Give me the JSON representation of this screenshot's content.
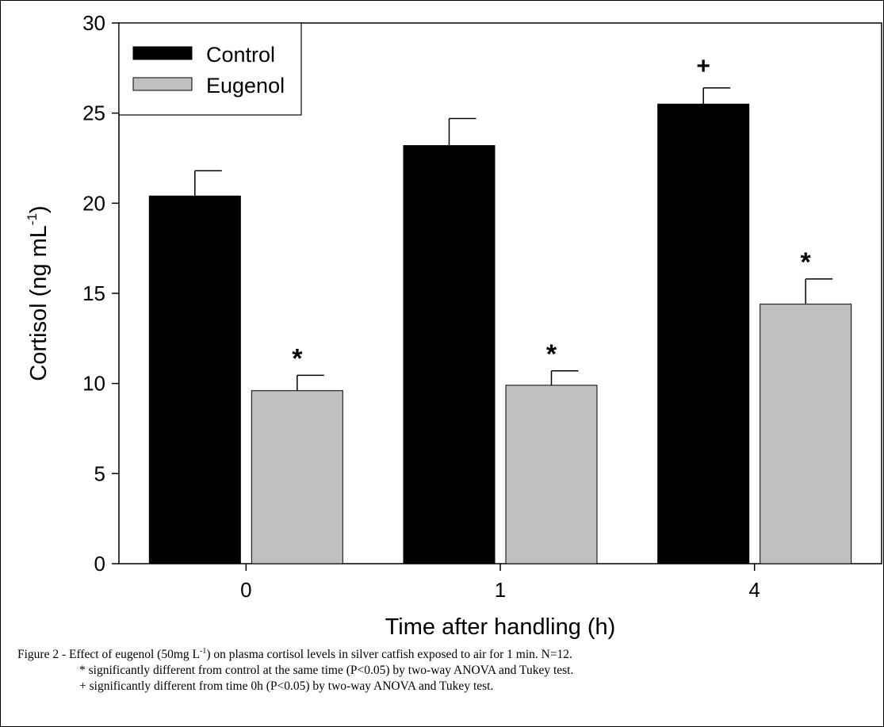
{
  "chart_data": {
    "type": "bar",
    "categories": [
      "0",
      "1",
      "4"
    ],
    "xlabel": "Time after handling (h)",
    "ylabel_main": "Cortisol (ng mL",
    "ylabel_sup": "-1",
    "ylabel_close": ")",
    "ylim": [
      0,
      30
    ],
    "yticks": [
      0,
      5,
      10,
      15,
      20,
      25,
      30
    ],
    "grid": false,
    "legend_position": "top-left",
    "series": [
      {
        "name": "Control",
        "color": "#000000",
        "values": [
          20.4,
          23.2,
          25.5
        ],
        "errors": [
          1.4,
          1.5,
          0.9
        ],
        "annotations": [
          "",
          "",
          "+"
        ]
      },
      {
        "name": "Eugenol",
        "color": "#c0c0c0",
        "values": [
          9.6,
          9.9,
          14.4
        ],
        "errors": [
          0.85,
          0.8,
          1.4
        ],
        "annotations": [
          "*",
          "*",
          "*"
        ]
      }
    ]
  },
  "caption": {
    "line1_pre": "Figure 2 - Effect of eugenol (50mg L",
    "line1_sup": "-1",
    "line1_post": ") on plasma cortisol levels in silver catfish exposed to air for 1 min. N=12.",
    "line2": "* significantly different from control at the same time (P<0.05)  by two-way ANOVA and Tukey test.",
    "line3": "+ significantly different from time 0h (P<0.05) by two-way ANOVA and Tukey test."
  }
}
